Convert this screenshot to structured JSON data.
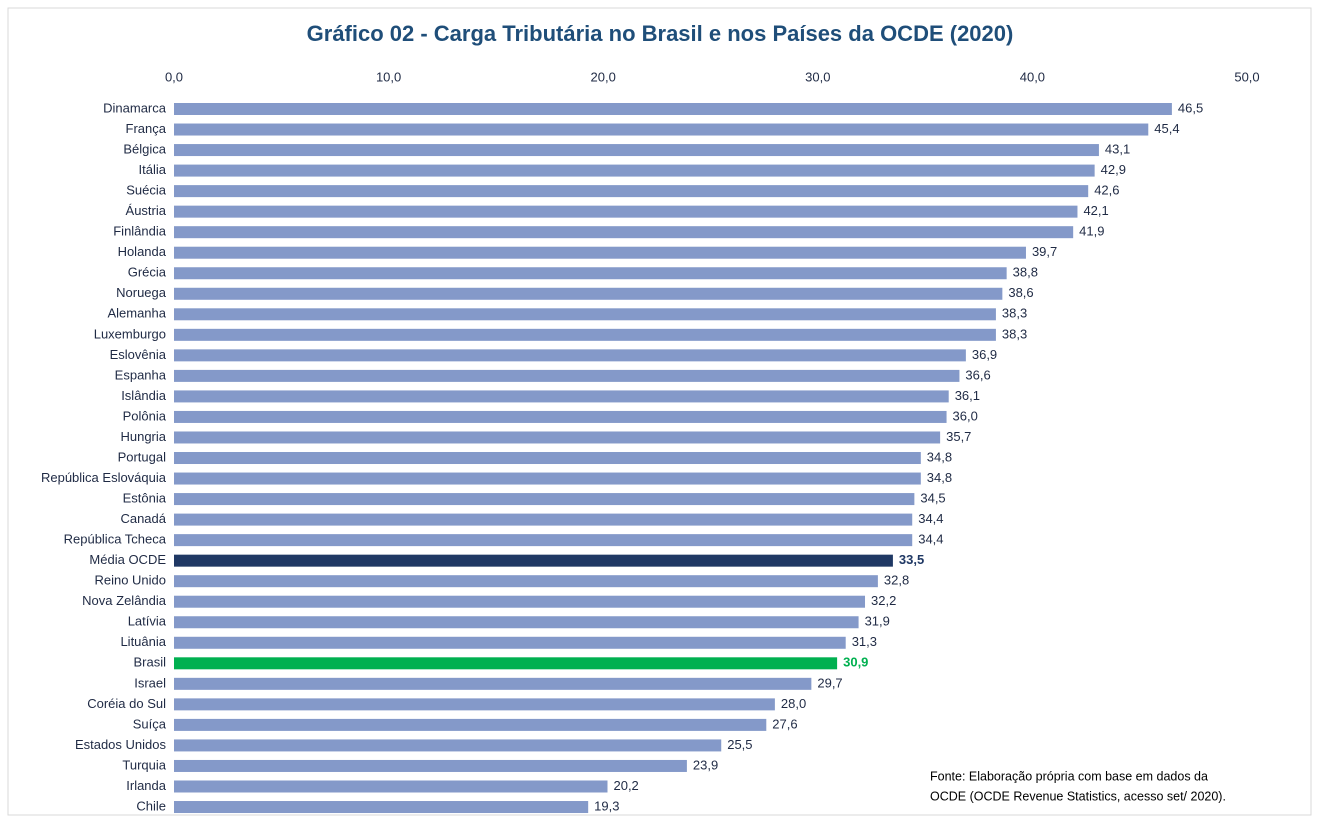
{
  "chart_data": {
    "type": "hbar",
    "title": "Gráfico 02 - Carga Tributária no Brasil e nos Países da OCDE (2020)",
    "categories": [
      "Dinamarca",
      "França",
      "Bélgica",
      "Itália",
      "Suécia",
      "Áustria",
      "Finlândia",
      "Holanda",
      "Grécia",
      "Noruega",
      "Alemanha",
      "Luxemburgo",
      "Eslovênia",
      "Espanha",
      "Islândia",
      "Polônia",
      "Hungria",
      "Portugal",
      "República Eslováquia",
      "Estônia",
      "Canadá",
      "República Tcheca",
      "Média OCDE",
      "Reino Unido",
      "Nova Zelândia",
      "Latívia",
      "Lituânia",
      "Brasil",
      "Israel",
      "Coréia do Sul",
      "Suíça",
      "Estados Unidos",
      "Turquia",
      "Irlanda",
      "Chile"
    ],
    "values": [
      46.5,
      45.4,
      43.1,
      42.9,
      42.6,
      42.1,
      41.9,
      39.7,
      38.8,
      38.6,
      38.3,
      38.3,
      36.9,
      36.6,
      36.1,
      36.0,
      35.7,
      34.8,
      34.8,
      34.5,
      34.4,
      34.4,
      33.5,
      32.8,
      32.2,
      31.9,
      31.3,
      30.9,
      29.7,
      28.0,
      27.6,
      25.5,
      23.9,
      20.2,
      19.3
    ],
    "value_labels": [
      "46,5",
      "45,4",
      "43,1",
      "42,9",
      "42,6",
      "42,1",
      "41,9",
      "39,7",
      "38,8",
      "38,6",
      "38,3",
      "38,3",
      "36,9",
      "36,6",
      "36,1",
      "36,0",
      "35,7",
      "34,8",
      "34,8",
      "34,5",
      "34,4",
      "34,4",
      "33,5",
      "32,8",
      "32,2",
      "31,9",
      "31,3",
      "30,9",
      "29,7",
      "28,0",
      "27,6",
      "25,5",
      "23,9",
      "20,2",
      "19,3"
    ],
    "color": "#8499c9",
    "colors": [
      "#8499c9",
      "#8499c9",
      "#8499c9",
      "#8499c9",
      "#8499c9",
      "#8499c9",
      "#8499c9",
      "#8499c9",
      "#8499c9",
      "#8499c9",
      "#8499c9",
      "#8499c9",
      "#8499c9",
      "#8499c9",
      "#8499c9",
      "#8499c9",
      "#8499c9",
      "#8499c9",
      "#8499c9",
      "#8499c9",
      "#8499c9",
      "#8499c9",
      "#1f3864",
      "#8499c9",
      "#8499c9",
      "#8499c9",
      "#8499c9",
      "#00b050",
      "#8499c9",
      "#8499c9",
      "#8499c9",
      "#8499c9",
      "#8499c9",
      "#8499c9",
      "#8499c9"
    ],
    "xlim": [
      0,
      50
    ],
    "xticks": [
      {
        "value": 0,
        "label": "0,0"
      },
      {
        "value": 10,
        "label": "10,0"
      },
      {
        "value": 20,
        "label": "20,0"
      },
      {
        "value": 30,
        "label": "30,0"
      },
      {
        "value": 40,
        "label": "40,0"
      },
      {
        "value": 50,
        "label": "50,0"
      }
    ],
    "note": [
      "Fonte:  Elaboração própria com base em dados da",
      "OCDE (OCDE Revenue Statistics, acesso set/ 2020)."
    ]
  }
}
